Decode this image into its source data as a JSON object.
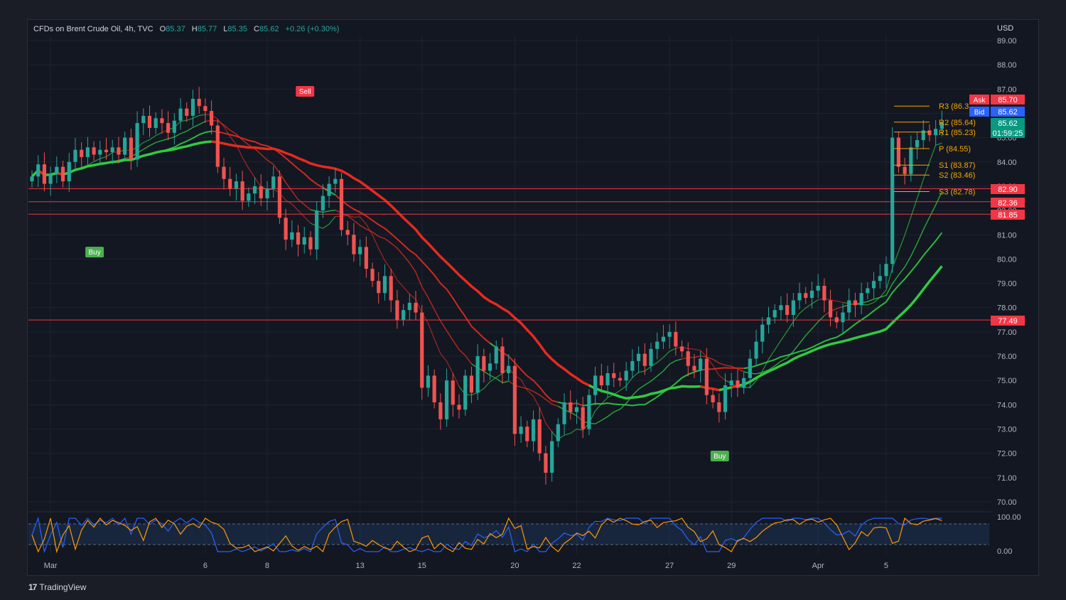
{
  "header": {
    "symbol": "CFDs on Brent Crude Oil, 4h, TVC",
    "o_label": "O",
    "o_value": "85.37",
    "h_label": "H",
    "h_value": "85.77",
    "l_label": "L",
    "l_value": "85.35",
    "c_label": "C",
    "c_value": "85.62",
    "change": "+0.26 (+0.30%)"
  },
  "currency": "USD",
  "branding": {
    "name": "TradingView",
    "mark": "17"
  },
  "chart_data": {
    "type": "candlestick",
    "ylim": [
      70.0,
      89.0
    ],
    "y_ticks": [
      "89.00",
      "88.00",
      "87.00",
      "86.00",
      "85.00",
      "84.00",
      "83.00",
      "82.00",
      "81.00",
      "80.00",
      "79.00",
      "78.00",
      "77.00",
      "76.00",
      "75.00",
      "74.00",
      "73.00",
      "72.00",
      "71.00",
      "70.00"
    ],
    "x_ticks": [
      {
        "label": "Mar",
        "i": 3
      },
      {
        "label": "6",
        "i": 28
      },
      {
        "label": "8",
        "i": 38
      },
      {
        "label": "13",
        "i": 53
      },
      {
        "label": "15",
        "i": 63
      },
      {
        "label": "20",
        "i": 78
      },
      {
        "label": "22",
        "i": 88
      },
      {
        "label": "27",
        "i": 103
      },
      {
        "label": "29",
        "i": 113
      },
      {
        "label": "Apr",
        "i": 127
      },
      {
        "label": "5",
        "i": 138
      }
    ],
    "closes": [
      83.4,
      83.9,
      83.1,
      83.5,
      83.8,
      83.2,
      84.0,
      84.5,
      84.2,
      84.6,
      84.3,
      84.5,
      84.4,
      84.6,
      84.3,
      85.0,
      84.1,
      85.6,
      85.9,
      85.4,
      85.8,
      85.6,
      85.2,
      85.7,
      86.2,
      85.9,
      86.6,
      86.3,
      86.1,
      85.5,
      83.8,
      83.3,
      82.9,
      83.2,
      82.4,
      82.7,
      83.0,
      82.5,
      82.9,
      83.4,
      81.7,
      80.8,
      81.1,
      80.6,
      80.9,
      80.4,
      82.0,
      82.6,
      83.1,
      83.3,
      81.2,
      81.0,
      80.2,
      80.5,
      79.6,
      79.1,
      78.6,
      79.3,
      78.3,
      77.5,
      77.9,
      78.2,
      77.8,
      74.7,
      75.2,
      74.1,
      73.4,
      75.0,
      74.0,
      73.8,
      75.2,
      74.5,
      76.0,
      75.4,
      75.7,
      76.4,
      75.3,
      75.6,
      72.8,
      73.1,
      72.5,
      73.4,
      72.0,
      71.2,
      72.5,
      73.2,
      74.1,
      73.7,
      73.9,
      73.0,
      74.4,
      75.2,
      74.8,
      75.3,
      75.1,
      75.0,
      75.4,
      75.8,
      76.1,
      75.6,
      76.3,
      76.6,
      76.8,
      77.0,
      76.4,
      76.2,
      75.6,
      75.4,
      75.9,
      74.4,
      74.1,
      73.7,
      74.8,
      75.0,
      74.7,
      75.1,
      75.9,
      76.6,
      77.3,
      77.6,
      77.9,
      78.1,
      77.7,
      78.3,
      78.6,
      78.4,
      78.7,
      78.9,
      78.3,
      77.6,
      77.4,
      77.8,
      78.3,
      78.1,
      78.6,
      78.8,
      79.1,
      79.3,
      79.8,
      85.0,
      83.8,
      83.5,
      84.6,
      84.9,
      85.3,
      85.1,
      85.36,
      85.62
    ],
    "indicator": {
      "name": "Stochastic",
      "levels": [
        "100.00",
        "0.00"
      ]
    },
    "price_labels": [
      {
        "text": "Ask",
        "value": "85.70",
        "color": "#f23645"
      },
      {
        "text": "Bid",
        "value": "85.62",
        "color": "#2962ff"
      },
      {
        "text": "",
        "value": "85.62",
        "color": "#089981"
      },
      {
        "text": "",
        "value": "01:59:25",
        "color": "#089981"
      },
      {
        "text": "",
        "value": "82.90",
        "color": "#f23645"
      },
      {
        "text": "",
        "value": "82.36",
        "color": "#f23645"
      },
      {
        "text": "",
        "value": "81.85",
        "color": "#f23645"
      },
      {
        "text": "",
        "value": "77.49",
        "color": "#f23645"
      }
    ],
    "pivots": [
      {
        "label": "R3 (86.3",
        "value": 86.3
      },
      {
        "label": "R2 (85.64)",
        "value": 85.64
      },
      {
        "label": "R1 (85.23)",
        "value": 85.23
      },
      {
        "label": "P (84.55)",
        "value": 84.55
      },
      {
        "label": "S1 (83.87)",
        "value": 83.87
      },
      {
        "label": "S2 (83.46)",
        "value": 83.46
      },
      {
        "label": "S3 (82.78)",
        "value": 82.78
      }
    ],
    "horizontal_lines": [
      82.9,
      82.36,
      81.85,
      77.49
    ],
    "signals": [
      {
        "text": "Buy",
        "i": 10,
        "price": 80.8,
        "dir": "up"
      },
      {
        "text": "Sell",
        "i": 44,
        "price": 86.6,
        "dir": "down"
      },
      {
        "text": "Buy",
        "i": 111,
        "price": 72.4,
        "dir": "up"
      }
    ],
    "colors": {
      "up": "#26a69a",
      "down": "#ef5350",
      "ma_red": "#e52a1e",
      "ma_green": "#2ecc40",
      "bg": "#131722"
    }
  }
}
